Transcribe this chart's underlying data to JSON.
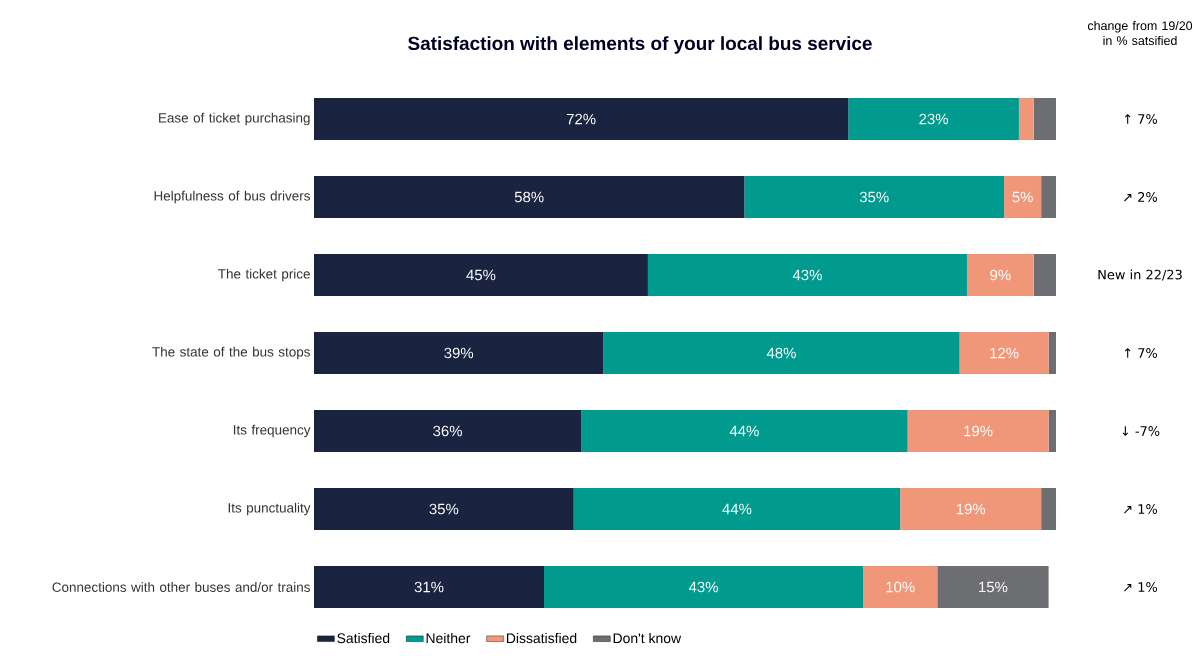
{
  "chart_data": {
    "type": "bar",
    "orientation": "horizontal",
    "stacked": true,
    "title": "Satisfaction with elements of your local bus service",
    "categories": [
      "Ease of ticket purchasing",
      "Helpfulness of bus drivers",
      "The ticket price",
      "The state of the bus stops",
      "Its frequency",
      "Its punctuality",
      "Connections with other buses and/or trains"
    ],
    "series": [
      {
        "name": "Satisfied",
        "color": "#1a2440",
        "values": [
          72,
          58,
          45,
          39,
          36,
          35,
          31
        ],
        "value_labels": [
          "72%",
          "58%",
          "45%",
          "39%",
          "36%",
          "35%",
          "31%"
        ]
      },
      {
        "name": "Neither",
        "color": "#009a8e",
        "values": [
          23,
          35,
          43,
          48,
          44,
          44,
          43
        ],
        "value_labels": [
          "23%",
          "35%",
          "43%",
          "48%",
          "44%",
          "44%",
          "43%"
        ]
      },
      {
        "name": "Dissatisfied",
        "color": "#f0977a",
        "values": [
          2,
          5,
          9,
          12,
          19,
          19,
          10
        ],
        "value_labels": [
          null,
          "5%",
          "9%",
          "12%",
          "19%",
          "19%",
          "10%"
        ]
      },
      {
        "name": "Don't know",
        "color": "#6d6e71",
        "values": [
          3,
          2,
          3,
          1,
          1,
          2,
          15
        ],
        "value_labels": [
          null,
          null,
          null,
          null,
          null,
          null,
          "15%"
        ]
      }
    ],
    "xlim": [
      0,
      100
    ],
    "tick_labels": "y",
    "legend": "bottom",
    "annotations": [
      "change from 19/20 in % satsified",
      "↑ 7%",
      "↗ 2%",
      "New in 22/23",
      "↑ 7%",
      "↓ -7%",
      "↗ 1%",
      "↗ 1%"
    ]
  }
}
